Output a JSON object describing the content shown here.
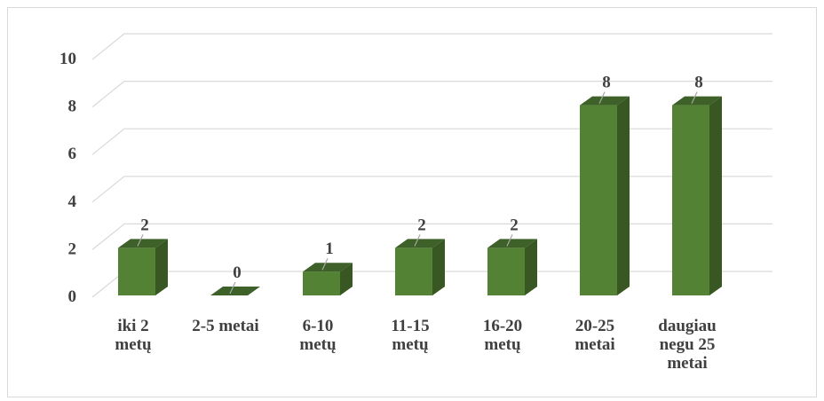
{
  "chart_data": {
    "type": "bar",
    "categories": [
      [
        "iki 2",
        "metų"
      ],
      [
        "2-5 metai"
      ],
      [
        "6-10",
        "metų"
      ],
      [
        "11-15",
        "metų"
      ],
      [
        "16-20",
        "metų"
      ],
      [
        "20-25",
        "metai"
      ],
      [
        "daugiau",
        "negu 25",
        "metai"
      ]
    ],
    "values": [
      2,
      0,
      1,
      2,
      2,
      8,
      8
    ],
    "yticks": [
      "0",
      "2",
      "4",
      "6",
      "8",
      "10"
    ],
    "ylim": [
      0,
      10
    ],
    "grid": true,
    "legend": "none",
    "title": "",
    "xlabel": "",
    "ylabel": "",
    "colors": {
      "bar_front": "#548235",
      "bar_side": "#385723",
      "bar_top": "#3d6128",
      "grid": "#d9d9d9",
      "text": "#404040"
    }
  }
}
